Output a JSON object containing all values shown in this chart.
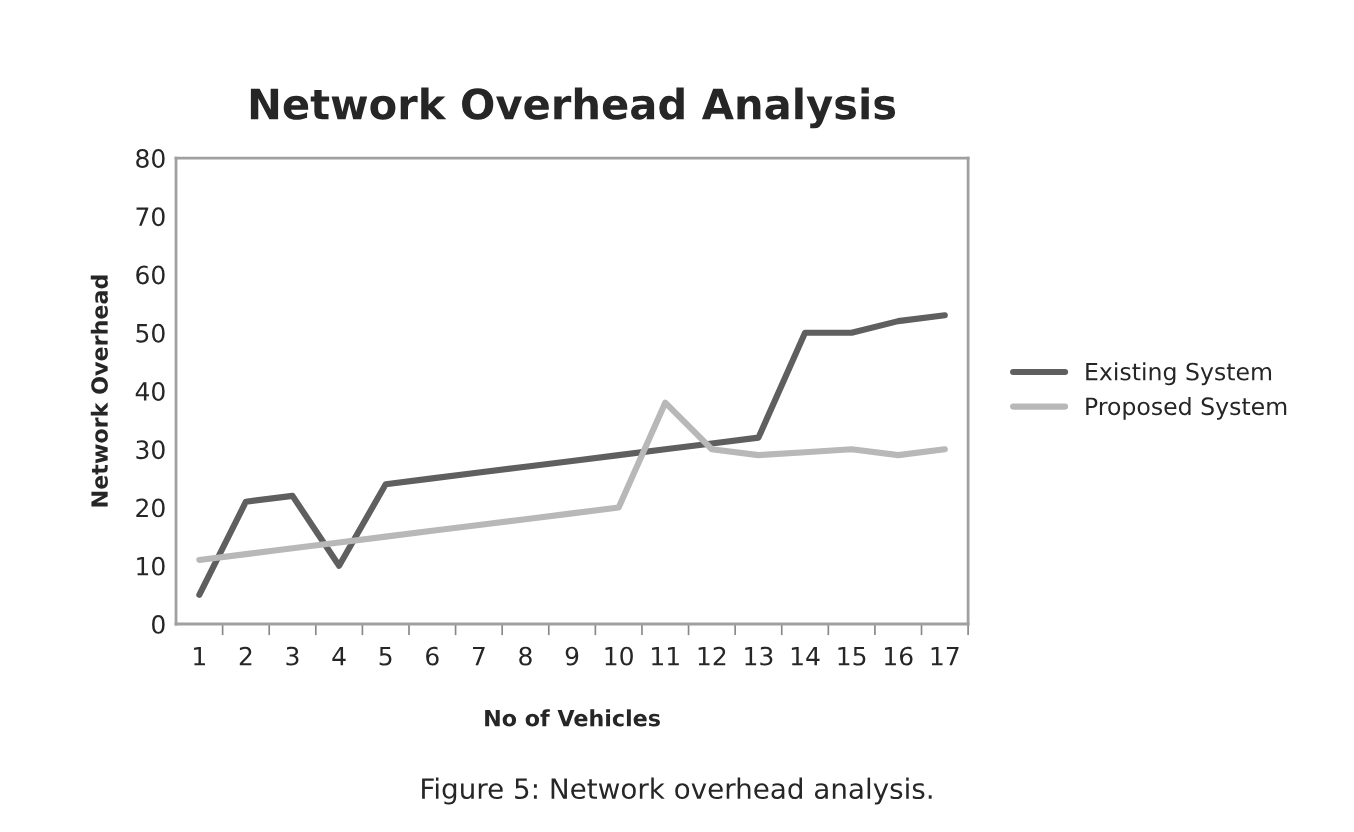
{
  "chart_data": {
    "type": "line",
    "title": "Network Overhead Analysis",
    "xlabel": "No of Vehicles",
    "ylabel": "Network Overhead",
    "categories": [
      "1",
      "2",
      "3",
      "4",
      "5",
      "6",
      "7",
      "8",
      "9",
      "10",
      "11",
      "12",
      "13",
      "14",
      "15",
      "16",
      "17"
    ],
    "series": [
      {
        "name": "Existing System",
        "color": "#5f5f5f",
        "values": [
          5,
          21,
          22,
          10,
          24,
          25,
          26,
          27,
          28,
          29,
          30,
          31,
          32,
          50,
          50,
          52,
          53
        ]
      },
      {
        "name": "Proposed System",
        "color": "#b8b8b8",
        "values": [
          11,
          12,
          13,
          14,
          15,
          16,
          17,
          18,
          19,
          20,
          38,
          30,
          29,
          29.5,
          30,
          29,
          30
        ]
      }
    ],
    "ylim": [
      0,
      80
    ],
    "yticks": [
      0,
      10,
      20,
      30,
      40,
      50,
      60,
      70,
      80
    ],
    "grid": false,
    "legend": "right",
    "marker": "none",
    "line_style": "solid",
    "annotations": [
      "Figure 5: Network overhead analysis."
    ]
  }
}
